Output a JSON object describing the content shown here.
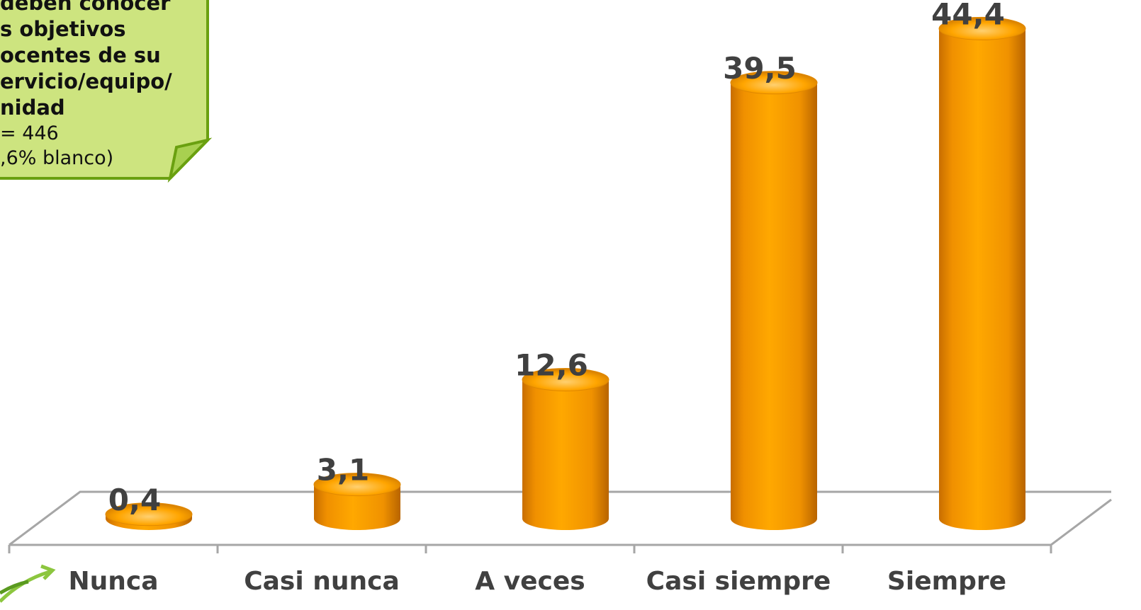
{
  "chart_data": {
    "type": "cylinder-bar",
    "categories": [
      "Nunca",
      "Casi nunca",
      "A veces",
      "Casi siempre",
      "Siempre"
    ],
    "values": [
      0.4,
      3.1,
      12.6,
      39.5,
      44.4
    ],
    "value_labels": [
      "0,4",
      "3,1",
      "12,6",
      "39,5",
      "44,4"
    ],
    "color": "#ff9c00",
    "note": {
      "title_lines": [
        "deben conocer",
        "s objetivos",
        "ocentes de su",
        "ervicio/equipo/",
        "nidad"
      ],
      "text_lines": [
        "= 446",
        ",6% blanco)"
      ]
    }
  }
}
